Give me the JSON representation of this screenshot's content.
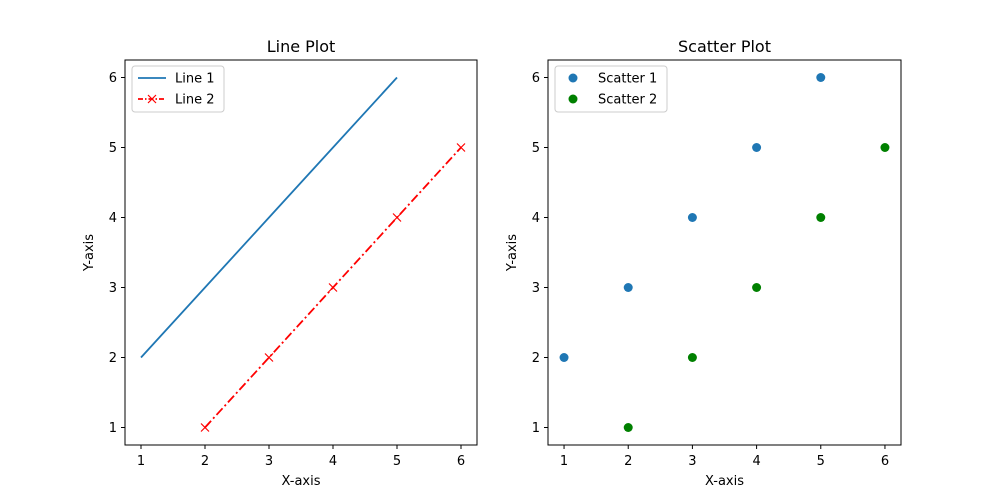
{
  "chart_data": [
    {
      "type": "line",
      "title": "Line Plot",
      "xlabel": "X-axis",
      "ylabel": "Y-axis",
      "xlim": [
        0.75,
        6.25
      ],
      "ylim": [
        0.75,
        6.25
      ],
      "xticks": [
        1,
        2,
        3,
        4,
        5,
        6
      ],
      "yticks": [
        1,
        2,
        3,
        4,
        5,
        6
      ],
      "grid": false,
      "legend": "upper-left",
      "series": [
        {
          "name": "Line 1",
          "x": [
            1,
            2,
            3,
            4,
            5
          ],
          "y": [
            2,
            3,
            4,
            5,
            6
          ],
          "color": "#1f77b4",
          "linestyle": "solid",
          "marker": "none"
        },
        {
          "name": "Line 2",
          "x": [
            2,
            3,
            4,
            5,
            6
          ],
          "y": [
            1,
            2,
            3,
            4,
            5
          ],
          "color": "#ff0000",
          "linestyle": "dashdot",
          "marker": "x"
        }
      ]
    },
    {
      "type": "scatter",
      "title": "Scatter Plot",
      "xlabel": "X-axis",
      "ylabel": "Y-axis",
      "xlim": [
        0.75,
        6.25
      ],
      "ylim": [
        0.75,
        6.25
      ],
      "xticks": [
        1,
        2,
        3,
        4,
        5,
        6
      ],
      "yticks": [
        1,
        2,
        3,
        4,
        5,
        6
      ],
      "grid": false,
      "legend": "upper-left",
      "series": [
        {
          "name": "Scatter 1",
          "x": [
            1,
            2,
            3,
            4,
            5
          ],
          "y": [
            2,
            3,
            4,
            5,
            6
          ],
          "color": "#1f77b4",
          "marker": "circle"
        },
        {
          "name": "Scatter 2",
          "x": [
            2,
            3,
            4,
            5,
            6
          ],
          "y": [
            1,
            2,
            3,
            4,
            5
          ],
          "color": "#008000",
          "marker": "circle"
        }
      ]
    }
  ]
}
